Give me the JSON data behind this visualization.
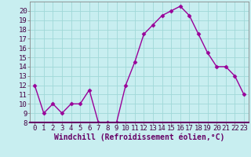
{
  "hours": [
    0,
    1,
    2,
    3,
    4,
    5,
    6,
    7,
    8,
    9,
    10,
    11,
    12,
    13,
    14,
    15,
    16,
    17,
    18,
    19,
    20,
    21,
    22,
    23
  ],
  "values": [
    12,
    9,
    10,
    9,
    10,
    10,
    11.5,
    8,
    8,
    8,
    12,
    14.5,
    17.5,
    18.5,
    19.5,
    20,
    20.5,
    19.5,
    17.5,
    15.5,
    14,
    14,
    13,
    11
  ],
  "line_color": "#990099",
  "marker": "D",
  "markersize": 2.5,
  "linewidth": 1.0,
  "bg_color": "#c8eef0",
  "grid_color": "#a0d8d8",
  "xlabel": "Windchill (Refroidissement éolien,°C)",
  "xlabel_color": "#660066",
  "xlabel_fontsize": 7,
  "ylim": [
    8,
    21
  ],
  "yticks": [
    8,
    9,
    10,
    11,
    12,
    13,
    14,
    15,
    16,
    17,
    18,
    19,
    20
  ],
  "tick_fontsize": 6.5,
  "spine_color": "#888888",
  "axis_bg": "#c8eef0"
}
